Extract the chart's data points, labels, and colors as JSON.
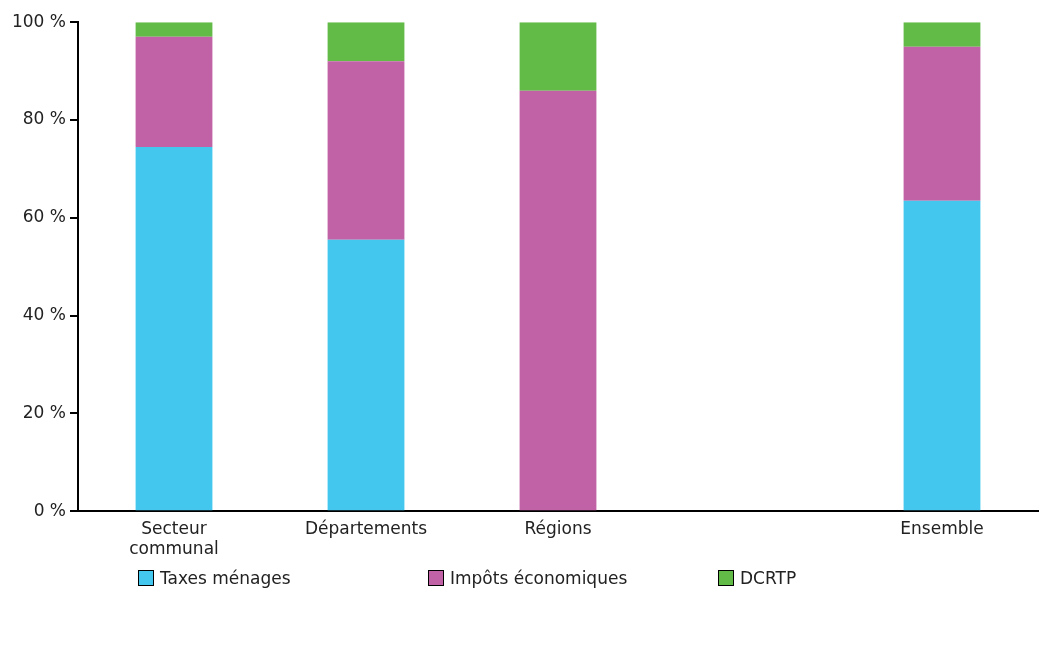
{
  "chart_data": {
    "type": "bar",
    "stacked": true,
    "categories": [
      "Secteur communal",
      "Départements",
      "Régions",
      null,
      "Ensemble"
    ],
    "series": [
      {
        "name": "Taxes ménages",
        "color": "#43c7ee",
        "values": [
          74.5,
          55.5,
          0,
          null,
          63.5
        ]
      },
      {
        "name": "Impôts économiques",
        "color": "#c062a5",
        "values": [
          22.5,
          36.5,
          86,
          null,
          31.5
        ]
      },
      {
        "name": "DCRTP",
        "color": "#62bb47",
        "values": [
          3,
          8,
          14,
          null,
          5
        ]
      }
    ],
    "ylim": [
      0,
      100
    ],
    "yticks": [
      {
        "value": 0,
        "label": "0 %"
      },
      {
        "value": 20,
        "label": "20 %"
      },
      {
        "value": 40,
        "label": "40 %"
      },
      {
        "value": 60,
        "label": "60 %"
      },
      {
        "value": 80,
        "label": "80 %"
      },
      {
        "value": 100,
        "label": "100 %"
      }
    ],
    "grid": false,
    "legend": "bottom"
  }
}
